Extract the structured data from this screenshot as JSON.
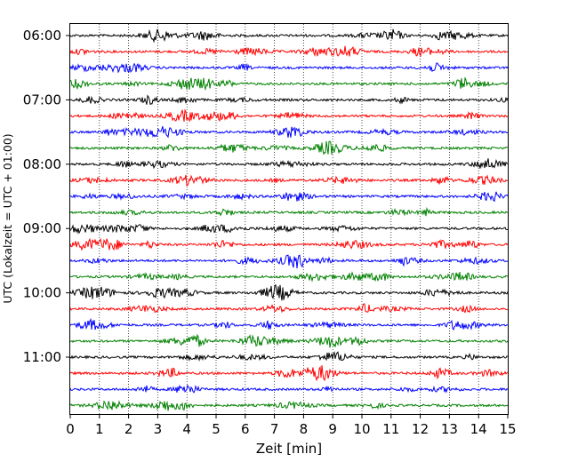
{
  "chart_data": {
    "type": "line",
    "title": "",
    "xlabel": "Zeit  [min]",
    "ylabel": "UTC (Lokalzeit = UTC + 01:00)",
    "xlim": [
      0,
      15
    ],
    "x_ticks": [
      "0",
      "1",
      "2",
      "3",
      "4",
      "5",
      "6",
      "7",
      "8",
      "9",
      "10",
      "11",
      "12",
      "13",
      "14",
      "15"
    ],
    "y_tick_labels": [
      "06:00",
      "07:00",
      "08:00",
      "09:00",
      "10:00",
      "11:00"
    ],
    "y_tick_traces": [
      0,
      4,
      8,
      12,
      16,
      20
    ],
    "grid": "vertical dotted lines at each minute",
    "legend": "none",
    "trace_colors": [
      "#000000",
      "#ff0000",
      "#0000ff",
      "#008000"
    ],
    "traces": [
      {
        "start": "06:00"
      },
      {
        "start": "06:15"
      },
      {
        "start": "06:30"
      },
      {
        "start": "06:45"
      },
      {
        "start": "07:00"
      },
      {
        "start": "07:15"
      },
      {
        "start": "07:30"
      },
      {
        "start": "07:45"
      },
      {
        "start": "08:00"
      },
      {
        "start": "08:15"
      },
      {
        "start": "08:30"
      },
      {
        "start": "08:45"
      },
      {
        "start": "09:00"
      },
      {
        "start": "09:15"
      },
      {
        "start": "09:30"
      },
      {
        "start": "09:45"
      },
      {
        "start": "10:00"
      },
      {
        "start": "10:15"
      },
      {
        "start": "10:30"
      },
      {
        "start": "10:45"
      },
      {
        "start": "11:00"
      },
      {
        "start": "11:15"
      },
      {
        "start": "11:30"
      },
      {
        "start": "11:45"
      }
    ]
  }
}
